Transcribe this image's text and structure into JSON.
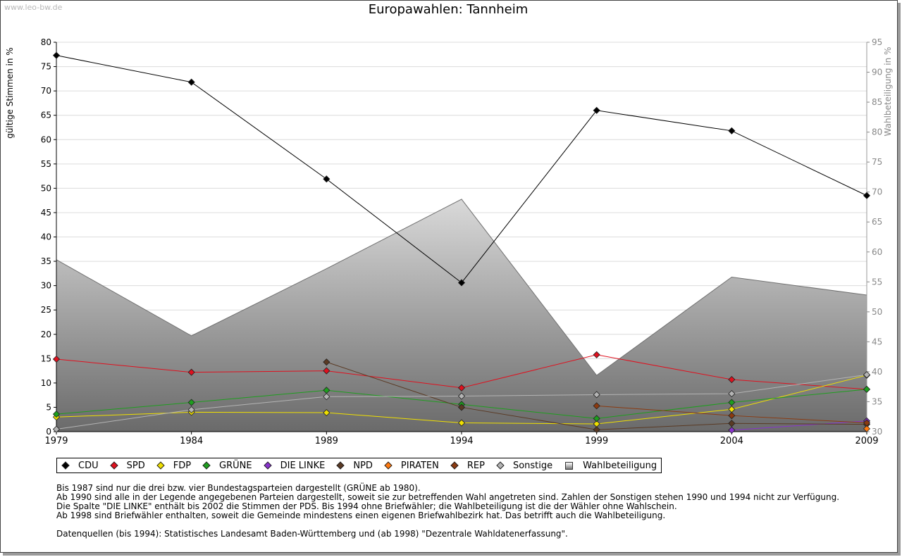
{
  "watermark": "www.leo-bw.de",
  "chart_data": {
    "type": "line",
    "title": "Europawahlen: Tannheim",
    "ylabel": "gültige Stimmen in %",
    "ylabel_right": "Wahlbeteiligung in %",
    "x": [
      1979,
      1984,
      1989,
      1994,
      1999,
      2004,
      2009
    ],
    "ylim": [
      0,
      80
    ],
    "y_ticks": [
      0,
      5,
      10,
      15,
      20,
      25,
      30,
      35,
      40,
      45,
      50,
      55,
      60,
      65,
      70,
      75,
      80
    ],
    "ylim_right": [
      30,
      95
    ],
    "y_ticks_right": [
      30,
      35,
      40,
      45,
      50,
      55,
      60,
      65,
      70,
      75,
      80,
      85,
      90,
      95
    ],
    "grid": "horizontal",
    "legend_position": "bottom",
    "series": [
      {
        "name": "CDU",
        "color": "#000000",
        "values": [
          77.3,
          71.8,
          51.9,
          30.6,
          66.0,
          61.8,
          48.5
        ]
      },
      {
        "name": "SPD",
        "color": "#e0101e",
        "values": [
          14.9,
          12.2,
          12.5,
          9.0,
          15.8,
          10.7,
          8.7
        ]
      },
      {
        "name": "FDP",
        "color": "#f0e000",
        "values": [
          3.0,
          4.0,
          3.9,
          1.8,
          1.6,
          4.6,
          11.6
        ]
      },
      {
        "name": "GRÜNE",
        "color": "#1e9e1e",
        "values": [
          3.6,
          6.0,
          8.5,
          5.6,
          2.7,
          6.0,
          8.7
        ]
      },
      {
        "name": "DIE LINKE",
        "color": "#8833cc",
        "values": [
          null,
          null,
          null,
          null,
          null,
          0.3,
          2.2
        ]
      },
      {
        "name": "NPD",
        "color": "#5a3a24",
        "values": [
          null,
          null,
          14.3,
          5.0,
          0.4,
          1.7,
          1.5
        ]
      },
      {
        "name": "PIRATEN",
        "color": "#ff7a10",
        "values": [
          null,
          null,
          null,
          null,
          null,
          null,
          0.6
        ]
      },
      {
        "name": "REP",
        "color": "#8b3a10",
        "values": [
          null,
          null,
          null,
          null,
          5.3,
          3.3,
          1.8
        ]
      },
      {
        "name": "Sonstige",
        "color": "#b4b4b4",
        "values": [
          0.5,
          4.5,
          7.2,
          7.3,
          7.6,
          7.8,
          11.7
        ]
      }
    ],
    "turnout": {
      "name": "Wahlbeteiligung",
      "axis": "right",
      "values": [
        58.7,
        46.0,
        57.2,
        68.8,
        39.4,
        55.8,
        52.8
      ]
    }
  },
  "legend": [
    {
      "label": "CDU",
      "color": "#000000",
      "marker": "diamond"
    },
    {
      "label": "SPD",
      "color": "#e0101e",
      "marker": "diamond"
    },
    {
      "label": "FDP",
      "color": "#f0e000",
      "marker": "diamond"
    },
    {
      "label": "GRÜNE",
      "color": "#1e9e1e",
      "marker": "diamond"
    },
    {
      "label": "DIE LINKE",
      "color": "#8833cc",
      "marker": "diamond"
    },
    {
      "label": "NPD",
      "color": "#5a3a24",
      "marker": "diamond"
    },
    {
      "label": "PIRATEN",
      "color": "#ff7a10",
      "marker": "diamond"
    },
    {
      "label": "REP",
      "color": "#8b3a10",
      "marker": "diamond"
    },
    {
      "label": "Sonstige",
      "color": "#b4b4b4",
      "marker": "diamond"
    },
    {
      "label": "Wahlbeteiligung",
      "color": "#888888",
      "marker": "square"
    }
  ],
  "notes": [
    "Bis 1987 sind nur die drei bzw. vier Bundestagsparteien dargestellt (GRÜNE ab 1980).",
    "Ab 1990 sind alle in der Legende angegebenen Parteien dargestellt, soweit sie zur betreffenden Wahl angetreten sind. Zahlen der Sonstigen stehen 1990 und 1994 nicht zur Verfügung.",
    "Die Spalte \"DIE LINKE\" enthält bis 2002 die Stimmen der PDS. Bis 1994 ohne Briefwähler; die Wahlbeteiligung ist die der Wähler ohne Wahlschein.",
    "Ab 1998 sind Briefwähler enthalten, soweit die Gemeinde mindestens einen eigenen Briefwahlbezirk hat. Das betrifft auch die Wahlbeteiligung.",
    "",
    "Datenquellen (bis 1994): Statistisches Landesamt Baden-Württemberg und (ab 1998) \"Dezentrale Wahldatenerfassung\"."
  ]
}
